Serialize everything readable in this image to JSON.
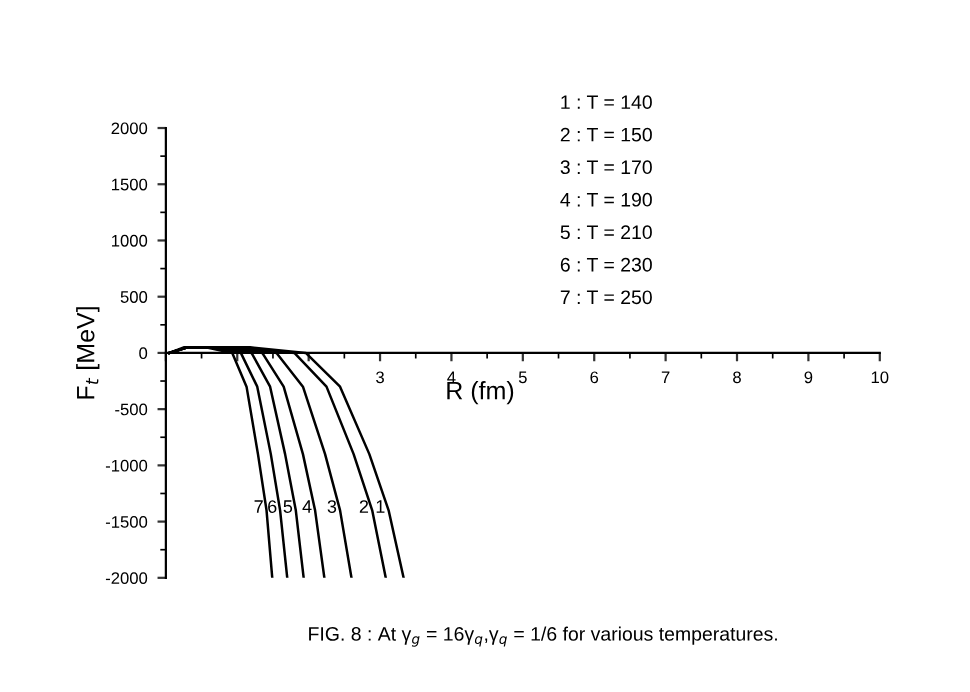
{
  "chart_data": {
    "type": "line",
    "xlabel": "R (fm)",
    "ylabel": "F$_{t}$ [MeV]",
    "series": [
      {
        "color": "#000000",
        "x": [
          0.05,
          0.3,
          1.18,
          1.96,
          2.44,
          2.85,
          3.12,
          3.33
        ],
        "values": [
          0,
          50,
          50,
          0,
          -300,
          -900,
          -1400,
          -2000
        ]
      },
      {
        "color": "#000000",
        "x": [
          0.05,
          0.3,
          1.08,
          1.8,
          2.25,
          2.63,
          2.89,
          3.08
        ],
        "values": [
          0,
          50,
          50,
          0,
          -300,
          -900,
          -1400,
          -2000
        ]
      },
      {
        "color": "#000000",
        "x": [
          0.05,
          0.3,
          0.93,
          1.55,
          1.92,
          2.23,
          2.44,
          2.6
        ],
        "values": [
          0,
          50,
          50,
          0,
          -300,
          -900,
          -1400,
          -2000
        ]
      },
      {
        "color": "#000000",
        "x": [
          0.05,
          0.3,
          0.81,
          1.35,
          1.65,
          1.92,
          2.09,
          2.22
        ],
        "values": [
          0,
          50,
          50,
          0,
          -300,
          -900,
          -1400,
          -2000
        ]
      },
      {
        "color": "#000000",
        "x": [
          0.05,
          0.3,
          0.72,
          1.2,
          1.46,
          1.67,
          1.82,
          1.93
        ],
        "values": [
          0,
          50,
          50,
          0,
          -300,
          -900,
          -1400,
          -2000
        ]
      },
      {
        "color": "#000000",
        "x": [
          0.05,
          0.3,
          0.63,
          1.05,
          1.28,
          1.47,
          1.6,
          1.7
        ],
        "values": [
          0,
          50,
          50,
          0,
          -300,
          -900,
          -1400,
          -2000
        ]
      },
      {
        "color": "#000000",
        "x": [
          0.05,
          0.25,
          0.56,
          0.93,
          1.13,
          1.29,
          1.41,
          1.49
        ],
        "values": [
          0,
          50,
          50,
          0,
          -300,
          -900,
          -1400,
          -2000
        ]
      }
    ],
    "xlim": [
      0,
      10
    ],
    "ylim": [
      -2000,
      2000
    ],
    "xticks": [
      {
        "value": 0,
        "label": null
      },
      {
        "value": 1,
        "label": null
      },
      {
        "value": 2,
        "label": null
      },
      3,
      4,
      5,
      6,
      7,
      8,
      9,
      10
    ],
    "yticks": [
      -2000,
      -1500,
      -1000,
      -500,
      0,
      500,
      1000,
      1500,
      2000
    ],
    "grid": false,
    "marker": "none",
    "line_style": "solid",
    "annotations": [
      "1",
      "2",
      "3",
      "4",
      "5",
      "6",
      "7",
      "1 : T = 140",
      "2 : T = 150",
      "3 : T = 170",
      "4 : T = 190",
      "5 : T = 210",
      "6 : T = 230",
      "7 : T = 250",
      "FIG. 8 : At γ$_{g}$ = 16γ$_{q}$,γ$_{q}$ = 1/6 for various temperatures."
    ]
  }
}
